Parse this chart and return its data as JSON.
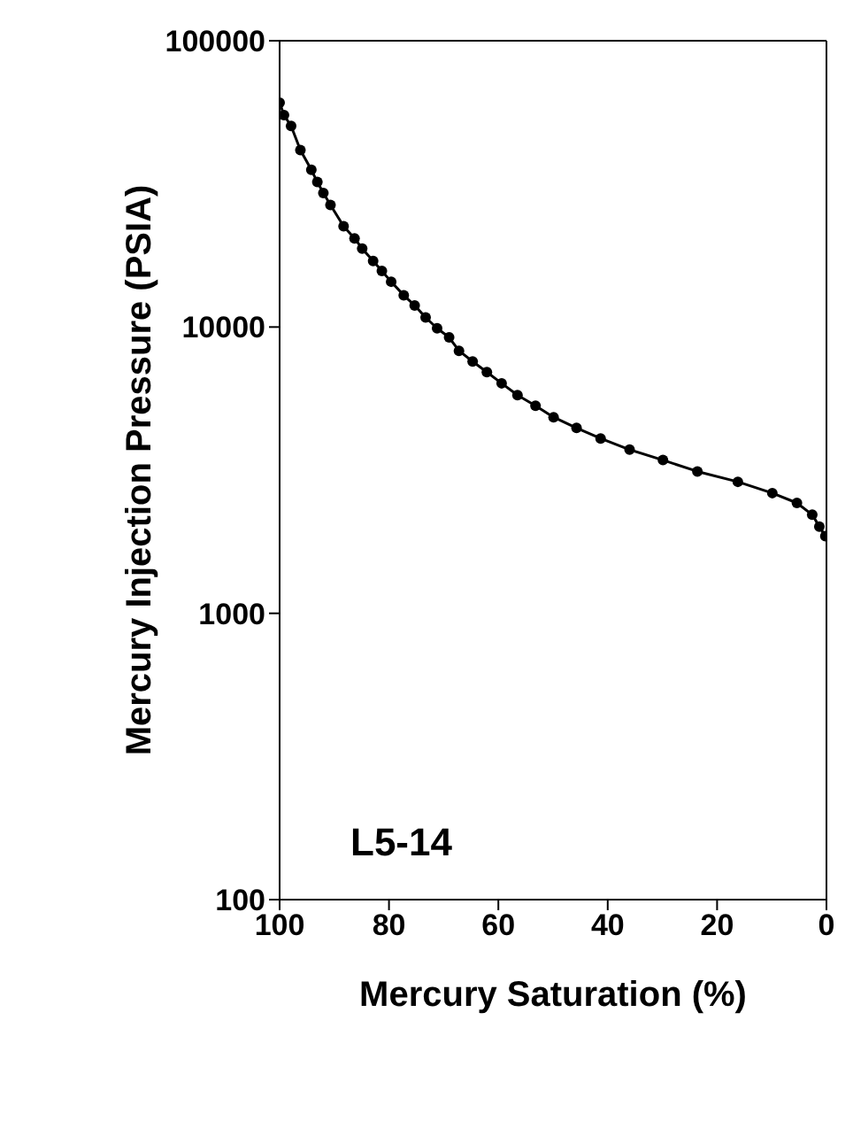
{
  "chart_data": {
    "type": "line",
    "xlabel": "Mercury Saturation (%)",
    "ylabel": "Mercury Injection Pressure (PSIA)",
    "annotations": [
      "L5-14"
    ],
    "x": [
      100,
      99.2,
      97.9,
      96.2,
      94.2,
      93.1,
      92.0,
      90.7,
      88.3,
      86.3,
      84.9,
      82.9,
      81.3,
      79.6,
      77.3,
      75.3,
      73.3,
      71.2,
      69.0,
      67.2,
      64.7,
      62.1,
      59.4,
      56.5,
      53.2,
      49.9,
      45.7,
      41.3,
      36.0,
      29.9,
      23.6,
      16.2,
      9.9,
      5.4,
      2.6,
      1.3,
      0.2
    ],
    "series": [
      {
        "color": "#000000",
        "values": [
          60700,
          55000,
          50400,
          41500,
          35400,
          32100,
          29400,
          26700,
          22500,
          20400,
          18800,
          17000,
          15700,
          14400,
          12900,
          11900,
          10800,
          9900,
          9200,
          8260,
          7580,
          6960,
          6360,
          5780,
          5310,
          4840,
          4440,
          4080,
          3730,
          3430,
          3130,
          2880,
          2630,
          2430,
          2210,
          2010,
          1860
        ]
      }
    ],
    "log": "y",
    "xlim": [
      100,
      0
    ],
    "xticks": [
      100,
      80,
      60,
      40,
      20,
      0
    ],
    "ylim": [
      100,
      100000
    ],
    "yticks": [
      100,
      1000,
      10000,
      100000
    ],
    "marker": "circle",
    "line_style": "solid"
  }
}
